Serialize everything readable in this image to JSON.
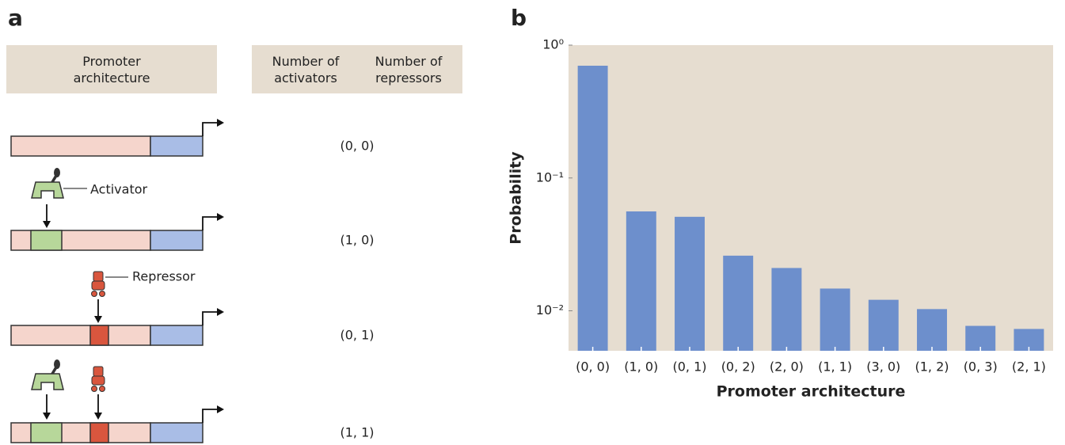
{
  "panel_a": {
    "label": "a",
    "header": {
      "left": "Promoter architecture",
      "right_top": "Number of activators",
      "right_bottom": "Number of repressors"
    },
    "annotations": {
      "activator": "Activator",
      "repressor": "Repressor"
    },
    "rows": [
      "(0, 0)",
      "(1, 0)",
      "(0, 1)",
      "(1, 1)"
    ]
  },
  "chart_data": {
    "type": "bar",
    "panel_label": "b",
    "ylabel": "Probability",
    "xlabel": "Promoter architecture",
    "categories": [
      "(0, 0)",
      "(1, 0)",
      "(0, 1)",
      "(0, 2)",
      "(2, 0)",
      "(1, 1)",
      "(3, 0)",
      "(1, 2)",
      "(0, 3)",
      "(2, 1)"
    ],
    "values": [
      0.7,
      0.056,
      0.051,
      0.026,
      0.021,
      0.0147,
      0.0121,
      0.0103,
      0.0077,
      0.0073
    ],
    "color": "#6d8fcc",
    "background": "#e6ddd0",
    "log_scale": true,
    "ylim": [
      0.005,
      1
    ],
    "yticks": [
      {
        "value": 1,
        "label": "10⁰"
      },
      {
        "value": 0.1,
        "label": "10⁻¹"
      },
      {
        "value": 0.01,
        "label": "10⁻²"
      }
    ]
  }
}
